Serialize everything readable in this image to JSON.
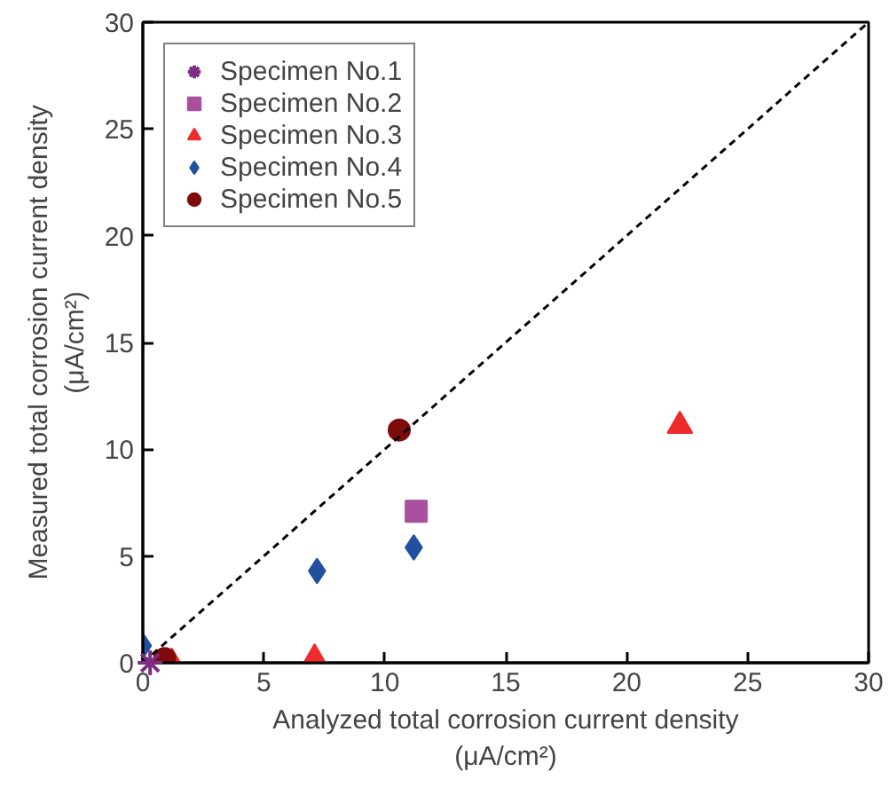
{
  "chart_data": {
    "type": "scatter",
    "xlabel": "Analyzed total corrosion current density\n(μA/cm²)",
    "ylabel": "Measured total corrosion current density\n(μA/cm²)",
    "xlim": [
      0,
      30
    ],
    "ylim": [
      0,
      30
    ],
    "xticks": [
      0,
      5,
      10,
      15,
      20,
      25,
      30
    ],
    "yticks": [
      0,
      5,
      10,
      15,
      20,
      25,
      30
    ],
    "grid": false,
    "legend": "top left",
    "series": [
      {
        "name": "Specimen No.1",
        "color": "#7b2c83",
        "marker": "cross",
        "x": [
          0.3
        ],
        "values": [
          0
        ]
      },
      {
        "name": "Specimen No.2",
        "color": "#a8509e",
        "marker": "square",
        "x": [
          11.3
        ],
        "values": [
          7.1
        ]
      },
      {
        "name": "Specimen No.3",
        "color": "#ee2c2c",
        "marker": "triangle",
        "x": [
          22.2,
          7.1,
          1.2
        ],
        "values": [
          11.1,
          0.2,
          0
        ]
      },
      {
        "name": "Specimen No.4",
        "color": "#22509e",
        "marker": "diamond",
        "x": [
          7.2,
          11.2,
          0
        ],
        "values": [
          4.3,
          5.4,
          0.8
        ]
      },
      {
        "name": "Specimen No.5",
        "color": "#7f0a0a",
        "marker": "circle",
        "x": [
          10.6,
          0.9
        ],
        "values": [
          10.9,
          0.2
        ]
      },
      {
        "type": "line",
        "color": "#000000",
        "line_style": "dashed",
        "x": [
          0,
          30
        ],
        "values": [
          0,
          30
        ]
      }
    ]
  }
}
